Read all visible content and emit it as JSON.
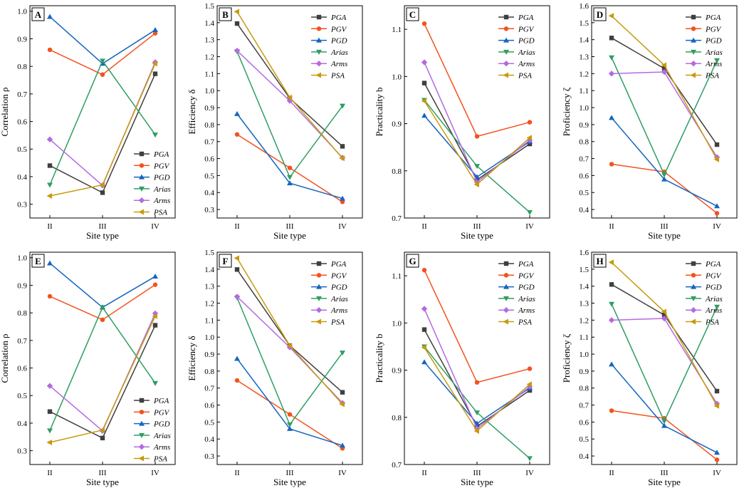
{
  "colors": {
    "PGA": "#3f3f3f",
    "PGV": "#f4511e",
    "PGD": "#1565c0",
    "Arias": "#2e9e62",
    "Arms": "#b36ae2",
    "PSA": "#c79a0c"
  },
  "chart_data": [
    {
      "type": "line",
      "letter": "A",
      "xlabel": "Site type",
      "ylabel": "Correlation ρ",
      "categories": [
        "II",
        "III",
        "IV"
      ],
      "ylim": [
        0.25,
        1.02
      ],
      "yticks": [
        "0.3",
        "0.4",
        "0.5",
        "0.6",
        "0.7",
        "0.8",
        "0.9",
        "1.0"
      ],
      "legend": "bottom-right",
      "series": [
        {
          "name": "PGA",
          "marker": "square",
          "values": [
            0.44,
            0.342,
            0.773
          ]
        },
        {
          "name": "PGV",
          "marker": "circle",
          "values": [
            0.86,
            0.77,
            0.92
          ]
        },
        {
          "name": "PGD",
          "marker": "triangle-up",
          "values": [
            0.98,
            0.81,
            0.932
          ]
        },
        {
          "name": "Arias",
          "marker": "triangle-down",
          "values": [
            0.37,
            0.82,
            0.552
          ]
        },
        {
          "name": "Arms",
          "marker": "diamond",
          "values": [
            0.535,
            0.368,
            0.815
          ]
        },
        {
          "name": "PSA",
          "marker": "triangle-left",
          "values": [
            0.33,
            0.37,
            0.81
          ]
        }
      ]
    },
    {
      "type": "line",
      "letter": "B",
      "xlabel": "Site type",
      "ylabel": "Efficiency δ",
      "categories": [
        "II",
        "III",
        "IV"
      ],
      "ylim": [
        0.25,
        1.5
      ],
      "yticks": [
        "0.3",
        "0.4",
        "0.5",
        "0.6",
        "0.7",
        "0.8",
        "0.9",
        "1.0",
        "1.1",
        "1.2",
        "1.3",
        "1.4",
        "1.5"
      ],
      "legend": "top-right",
      "series": [
        {
          "name": "PGA",
          "marker": "square",
          "values": [
            1.395,
            0.955,
            0.672
          ]
        },
        {
          "name": "PGV",
          "marker": "circle",
          "values": [
            0.742,
            0.545,
            0.345
          ]
        },
        {
          "name": "PGD",
          "marker": "triangle-up",
          "values": [
            0.863,
            0.455,
            0.365
          ]
        },
        {
          "name": "Arias",
          "marker": "triangle-down",
          "values": [
            1.23,
            0.49,
            0.91
          ]
        },
        {
          "name": "Arms",
          "marker": "diamond",
          "values": [
            1.235,
            0.94,
            0.605
          ]
        },
        {
          "name": "PSA",
          "marker": "triangle-left",
          "values": [
            1.465,
            0.96,
            0.602
          ]
        }
      ]
    },
    {
      "type": "line",
      "letter": "C",
      "xlabel": "Site type",
      "ylabel": "Practicality b",
      "categories": [
        "II",
        "III",
        "IV"
      ],
      "ylim": [
        0.7,
        1.15
      ],
      "yticks": [
        "0.7",
        "0.8",
        "0.9",
        "1.0",
        "1.1"
      ],
      "legend": "top-right",
      "series": [
        {
          "name": "PGA",
          "marker": "square",
          "values": [
            0.986,
            0.781,
            0.857
          ]
        },
        {
          "name": "PGV",
          "marker": "circle",
          "values": [
            1.112,
            0.873,
            0.903
          ]
        },
        {
          "name": "PGD",
          "marker": "triangle-up",
          "values": [
            0.917,
            0.787,
            0.862
          ]
        },
        {
          "name": "Arias",
          "marker": "triangle-down",
          "values": [
            0.95,
            0.81,
            0.712
          ]
        },
        {
          "name": "Arms",
          "marker": "diamond",
          "values": [
            1.03,
            0.776,
            0.865
          ]
        },
        {
          "name": "PSA",
          "marker": "triangle-left",
          "values": [
            0.948,
            0.771,
            0.87
          ]
        }
      ]
    },
    {
      "type": "line",
      "letter": "D",
      "xlabel": "Site type",
      "ylabel": "Proficiency ζ",
      "categories": [
        "II",
        "III",
        "IV"
      ],
      "ylim": [
        0.35,
        1.6
      ],
      "yticks": [
        "0.4",
        "0.5",
        "0.6",
        "0.7",
        "0.8",
        "0.9",
        "1.0",
        "1.1",
        "1.2",
        "1.3",
        "1.4",
        "1.5",
        "1.6"
      ],
      "legend": "top-right",
      "series": [
        {
          "name": "PGA",
          "marker": "square",
          "values": [
            1.41,
            1.23,
            0.782
          ]
        },
        {
          "name": "PGV",
          "marker": "circle",
          "values": [
            0.667,
            0.622,
            0.378
          ]
        },
        {
          "name": "PGD",
          "marker": "triangle-up",
          "values": [
            0.94,
            0.578,
            0.42
          ]
        },
        {
          "name": "Arias",
          "marker": "triangle-down",
          "values": [
            1.295,
            0.605,
            1.278
          ]
        },
        {
          "name": "Arms",
          "marker": "diamond",
          "values": [
            1.2,
            1.21,
            0.708
          ]
        },
        {
          "name": "PSA",
          "marker": "triangle-left",
          "values": [
            1.54,
            1.25,
            0.695
          ]
        }
      ]
    },
    {
      "type": "line",
      "letter": "E",
      "xlabel": "Site type",
      "ylabel": "Correlation ρ",
      "categories": [
        "II",
        "III",
        "IV"
      ],
      "ylim": [
        0.25,
        1.02
      ],
      "yticks": [
        "0.3",
        "0.4",
        "0.5",
        "0.6",
        "0.7",
        "0.8",
        "0.9",
        "1.0"
      ],
      "legend": "bottom-right",
      "series": [
        {
          "name": "PGA",
          "marker": "square",
          "values": [
            0.442,
            0.346,
            0.755
          ]
        },
        {
          "name": "PGV",
          "marker": "circle",
          "values": [
            0.86,
            0.775,
            0.902
          ]
        },
        {
          "name": "PGD",
          "marker": "triangle-up",
          "values": [
            0.98,
            0.82,
            0.932
          ]
        },
        {
          "name": "Arias",
          "marker": "triangle-down",
          "values": [
            0.373,
            0.82,
            0.545
          ]
        },
        {
          "name": "Arms",
          "marker": "diamond",
          "values": [
            0.535,
            0.372,
            0.798
          ]
        },
        {
          "name": "PSA",
          "marker": "triangle-left",
          "values": [
            0.33,
            0.375,
            0.788
          ]
        }
      ]
    },
    {
      "type": "line",
      "letter": "F",
      "xlabel": "Site type",
      "ylabel": "Efficiency δ",
      "categories": [
        "II",
        "III",
        "IV"
      ],
      "ylim": [
        0.25,
        1.5
      ],
      "yticks": [
        "0.3",
        "0.4",
        "0.5",
        "0.6",
        "0.7",
        "0.8",
        "0.9",
        "1.0",
        "1.1",
        "1.2",
        "1.3",
        "1.4",
        "1.5"
      ],
      "legend": "top-right",
      "series": [
        {
          "name": "PGA",
          "marker": "square",
          "values": [
            1.398,
            0.95,
            0.675
          ]
        },
        {
          "name": "PGV",
          "marker": "circle",
          "values": [
            0.745,
            0.545,
            0.345
          ]
        },
        {
          "name": "PGD",
          "marker": "triangle-up",
          "values": [
            0.873,
            0.46,
            0.362
          ]
        },
        {
          "name": "Arias",
          "marker": "triangle-down",
          "values": [
            1.232,
            0.485,
            0.908
          ]
        },
        {
          "name": "Arms",
          "marker": "diamond",
          "values": [
            1.238,
            0.94,
            0.612
          ]
        },
        {
          "name": "PSA",
          "marker": "triangle-left",
          "values": [
            1.465,
            0.95,
            0.605
          ]
        }
      ]
    },
    {
      "type": "line",
      "letter": "G",
      "xlabel": "Site type",
      "ylabel": "Practicality b",
      "categories": [
        "II",
        "III",
        "IV"
      ],
      "ylim": [
        0.7,
        1.15
      ],
      "yticks": [
        "0.7",
        "0.8",
        "0.9",
        "1.0",
        "1.1"
      ],
      "legend": "top-right",
      "series": [
        {
          "name": "PGA",
          "marker": "square",
          "values": [
            0.986,
            0.781,
            0.857
          ]
        },
        {
          "name": "PGV",
          "marker": "circle",
          "values": [
            1.112,
            0.874,
            0.903
          ]
        },
        {
          "name": "PGD",
          "marker": "triangle-up",
          "values": [
            0.917,
            0.787,
            0.862
          ]
        },
        {
          "name": "Arias",
          "marker": "triangle-down",
          "values": [
            0.95,
            0.81,
            0.713
          ]
        },
        {
          "name": "Arms",
          "marker": "diamond",
          "values": [
            1.03,
            0.776,
            0.865
          ]
        },
        {
          "name": "PSA",
          "marker": "triangle-left",
          "values": [
            0.948,
            0.771,
            0.87
          ]
        }
      ]
    },
    {
      "type": "line",
      "letter": "H",
      "xlabel": "Site type",
      "ylabel": "Proficiency ζ",
      "categories": [
        "II",
        "III",
        "IV"
      ],
      "ylim": [
        0.35,
        1.6
      ],
      "yticks": [
        "0.4",
        "0.5",
        "0.6",
        "0.7",
        "0.8",
        "0.9",
        "1.0",
        "1.1",
        "1.2",
        "1.3",
        "1.4",
        "1.5",
        "1.6"
      ],
      "legend": "top-right",
      "series": [
        {
          "name": "PGA",
          "marker": "square",
          "values": [
            1.41,
            1.23,
            0.782
          ]
        },
        {
          "name": "PGV",
          "marker": "circle",
          "values": [
            0.667,
            0.622,
            0.378
          ]
        },
        {
          "name": "PGD",
          "marker": "triangle-up",
          "values": [
            0.94,
            0.578,
            0.42
          ]
        },
        {
          "name": "Arias",
          "marker": "triangle-down",
          "values": [
            1.295,
            0.605,
            1.278
          ]
        },
        {
          "name": "Arms",
          "marker": "diamond",
          "values": [
            1.2,
            1.21,
            0.708
          ]
        },
        {
          "name": "PSA",
          "marker": "triangle-left",
          "values": [
            1.54,
            1.25,
            0.695
          ]
        }
      ]
    }
  ]
}
